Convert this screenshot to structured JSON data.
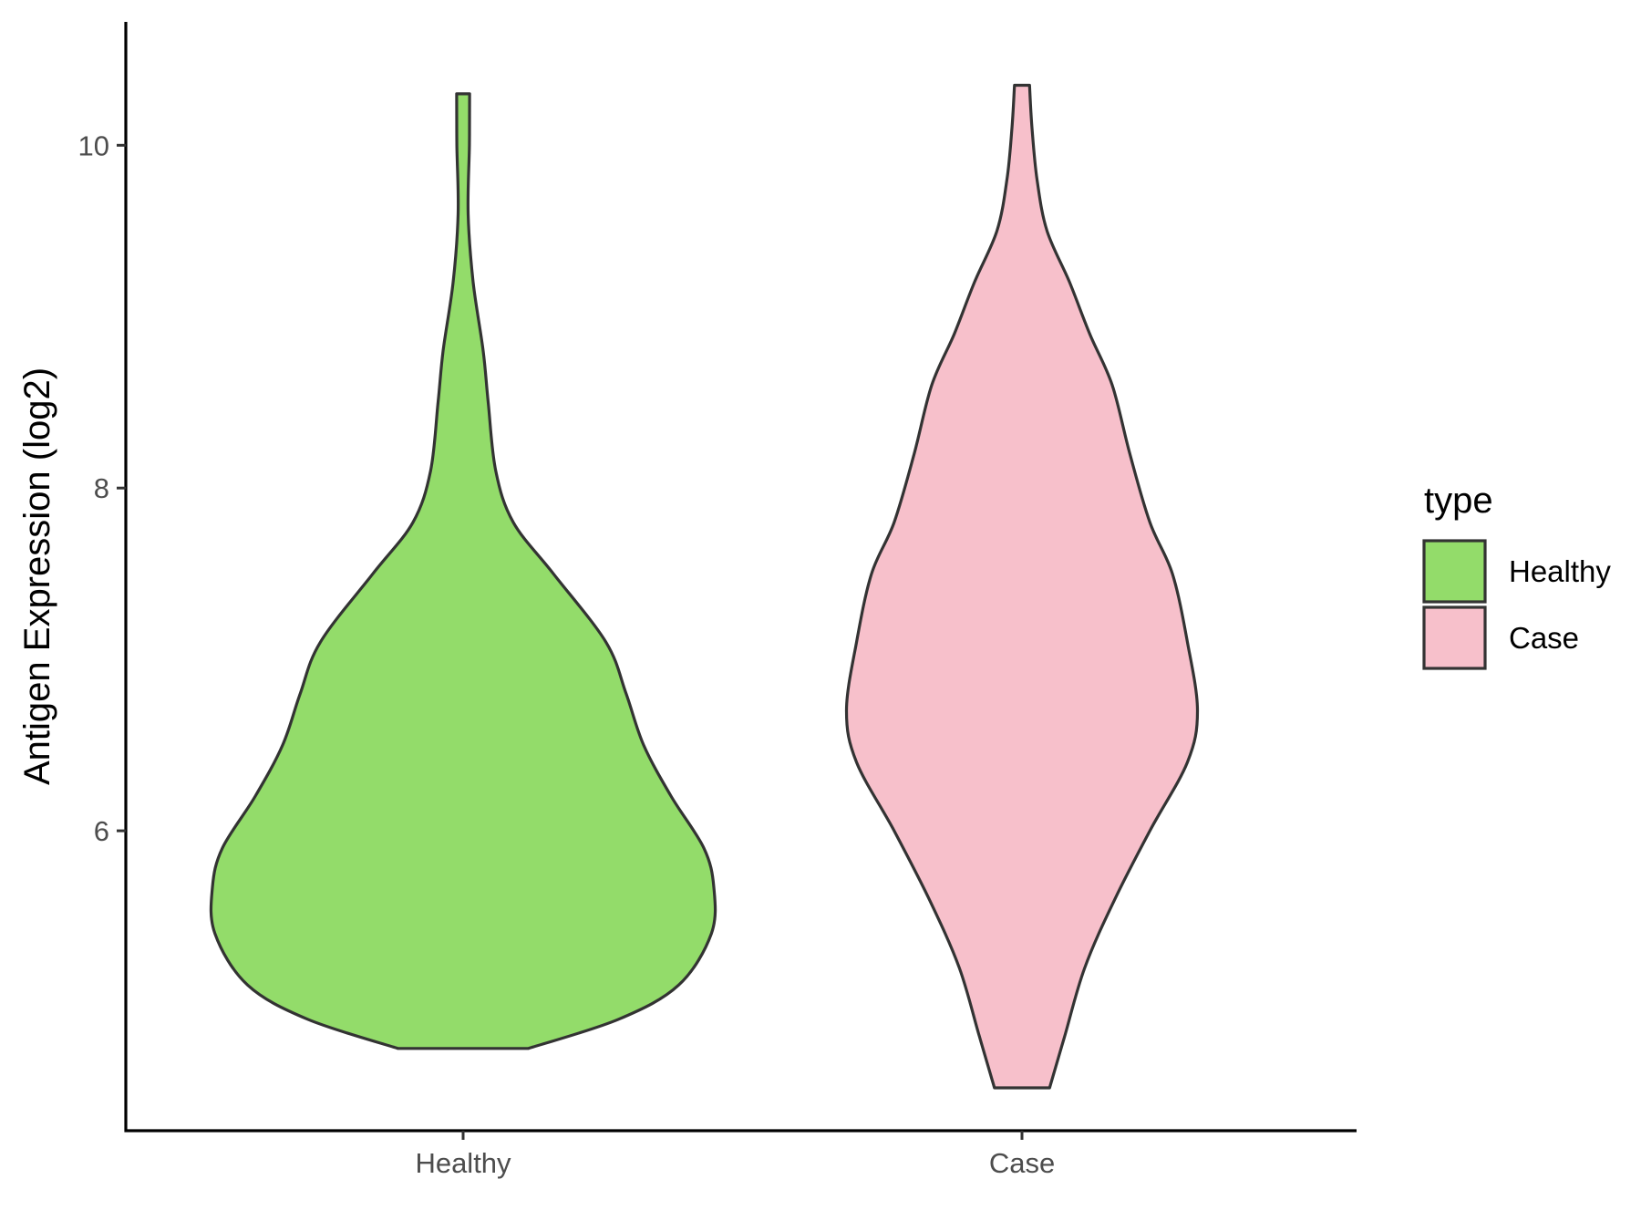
{
  "chart_data": {
    "type": "violin",
    "title": "",
    "xlabel": "",
    "ylabel": "Antigen Expression (log2)",
    "ylim": [
      4.25,
      10.72
    ],
    "yticks": [
      6,
      8,
      10
    ],
    "ytick_labels": [
      "6",
      "8",
      "10"
    ],
    "categories": [
      "Healthy",
      "Case"
    ],
    "grid": false,
    "legend": {
      "title": "type",
      "placement": "right",
      "items": [
        {
          "label": "Healthy",
          "color": "#93dc6a"
        },
        {
          "label": "Case",
          "color": "#f7c0cb"
        }
      ]
    },
    "series": [
      {
        "name": "Healthy",
        "color": "#93dc6a",
        "min": 4.73,
        "max": 10.3,
        "profile": [
          [
            4.73,
            0.26
          ],
          [
            4.9,
            0.62
          ],
          [
            5.1,
            0.86
          ],
          [
            5.4,
            0.99
          ],
          [
            5.67,
            1.0
          ],
          [
            5.9,
            0.96
          ],
          [
            6.2,
            0.83
          ],
          [
            6.5,
            0.72
          ],
          [
            6.8,
            0.65
          ],
          [
            7.1,
            0.57
          ],
          [
            7.5,
            0.36
          ],
          [
            7.8,
            0.2
          ],
          [
            8.1,
            0.13
          ],
          [
            8.5,
            0.1
          ],
          [
            8.8,
            0.08
          ],
          [
            9.2,
            0.04
          ],
          [
            9.6,
            0.02
          ],
          [
            10.0,
            0.025
          ],
          [
            10.3,
            0.026
          ]
        ]
      },
      {
        "name": "Case",
        "color": "#f7c0cb",
        "min": 4.5,
        "max": 10.35,
        "profile": [
          [
            4.5,
            0.11
          ],
          [
            4.8,
            0.17
          ],
          [
            5.2,
            0.25
          ],
          [
            5.6,
            0.37
          ],
          [
            6.0,
            0.51
          ],
          [
            6.4,
            0.66
          ],
          [
            6.7,
            0.7
          ],
          [
            7.1,
            0.66
          ],
          [
            7.5,
            0.6
          ],
          [
            7.8,
            0.51
          ],
          [
            8.2,
            0.43
          ],
          [
            8.6,
            0.36
          ],
          [
            8.9,
            0.27
          ],
          [
            9.2,
            0.19
          ],
          [
            9.5,
            0.1
          ],
          [
            9.8,
            0.06
          ],
          [
            10.1,
            0.04
          ],
          [
            10.35,
            0.03
          ]
        ]
      }
    ]
  }
}
